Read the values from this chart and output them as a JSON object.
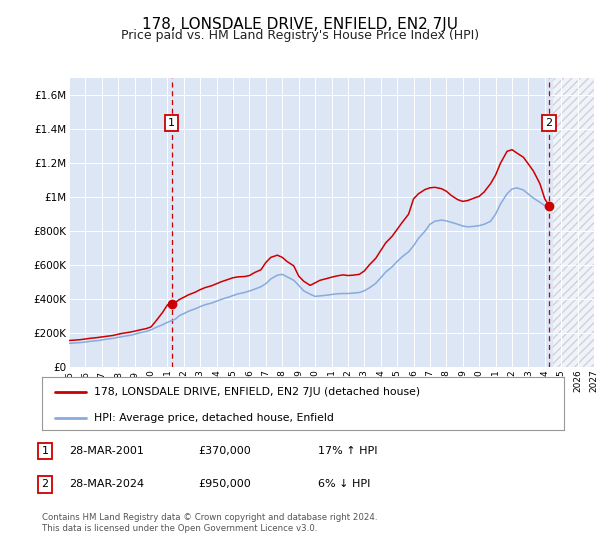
{
  "title": "178, LONSDALE DRIVE, ENFIELD, EN2 7JU",
  "subtitle": "Price paid vs. HM Land Registry's House Price Index (HPI)",
  "title_fontsize": 11,
  "subtitle_fontsize": 9,
  "background_color": "#ffffff",
  "plot_bg_color": "#dce6f5",
  "grid_color": "#ffffff",
  "red_color": "#cc0000",
  "blue_color": "#88aadd",
  "vline_color": "#cc0000",
  "marker1_x": 2001.25,
  "marker1_y": 370000,
  "marker2_x": 2024.25,
  "marker2_y": 950000,
  "x_min": 1995,
  "x_max": 2027,
  "y_min": 0,
  "y_max": 1700000,
  "yticks": [
    0,
    200000,
    400000,
    600000,
    800000,
    1000000,
    1200000,
    1400000,
    1600000
  ],
  "ytick_labels": [
    "£0",
    "£200K",
    "£400K",
    "£600K",
    "£800K",
    "£1M",
    "£1.2M",
    "£1.4M",
    "£1.6M"
  ],
  "legend1_label": "178, LONSDALE DRIVE, ENFIELD, EN2 7JU (detached house)",
  "legend2_label": "HPI: Average price, detached house, Enfield",
  "table_row1": [
    "1",
    "28-MAR-2001",
    "£370,000",
    "17% ↑ HPI"
  ],
  "table_row2": [
    "2",
    "28-MAR-2024",
    "£950,000",
    "6% ↓ HPI"
  ],
  "footer_line1": "Contains HM Land Registry data © Crown copyright and database right 2024.",
  "footer_line2": "This data is licensed under the Open Government Licence v3.0.",
  "red_years": [
    1995.0,
    1995.3,
    1995.7,
    1996.0,
    1996.3,
    1996.7,
    1997.0,
    1997.3,
    1997.7,
    1998.0,
    1998.3,
    1998.7,
    1999.0,
    1999.3,
    1999.7,
    2000.0,
    2000.3,
    2000.7,
    2001.0,
    2001.25,
    2001.5,
    2001.7,
    2002.0,
    2002.3,
    2002.7,
    2003.0,
    2003.3,
    2003.7,
    2004.0,
    2004.3,
    2004.7,
    2005.0,
    2005.3,
    2005.7,
    2006.0,
    2006.3,
    2006.7,
    2007.0,
    2007.3,
    2007.7,
    2008.0,
    2008.3,
    2008.7,
    2009.0,
    2009.3,
    2009.7,
    2010.0,
    2010.3,
    2010.7,
    2011.0,
    2011.3,
    2011.7,
    2012.0,
    2012.3,
    2012.7,
    2013.0,
    2013.3,
    2013.7,
    2014.0,
    2014.3,
    2014.7,
    2015.0,
    2015.3,
    2015.7,
    2016.0,
    2016.3,
    2016.7,
    2017.0,
    2017.3,
    2017.7,
    2018.0,
    2018.3,
    2018.7,
    2019.0,
    2019.3,
    2019.7,
    2020.0,
    2020.3,
    2020.7,
    2021.0,
    2021.3,
    2021.7,
    2022.0,
    2022.3,
    2022.7,
    2023.0,
    2023.3,
    2023.7,
    2024.0,
    2024.25
  ],
  "red_values": [
    155000,
    157000,
    160000,
    164000,
    168000,
    172000,
    176000,
    180000,
    185000,
    192000,
    198000,
    204000,
    210000,
    217000,
    225000,
    235000,
    270000,
    320000,
    365000,
    370000,
    380000,
    395000,
    410000,
    425000,
    440000,
    455000,
    467000,
    478000,
    490000,
    502000,
    515000,
    525000,
    530000,
    532000,
    538000,
    555000,
    572000,
    615000,
    645000,
    658000,
    645000,
    620000,
    595000,
    535000,
    505000,
    480000,
    495000,
    510000,
    520000,
    528000,
    535000,
    542000,
    538000,
    540000,
    545000,
    565000,
    600000,
    640000,
    685000,
    730000,
    770000,
    810000,
    850000,
    900000,
    990000,
    1020000,
    1045000,
    1055000,
    1058000,
    1050000,
    1035000,
    1010000,
    985000,
    975000,
    980000,
    995000,
    1005000,
    1030000,
    1080000,
    1130000,
    1200000,
    1270000,
    1280000,
    1260000,
    1235000,
    1195000,
    1155000,
    1080000,
    990000,
    950000
  ],
  "blue_years": [
    1995.0,
    1995.3,
    1995.7,
    1996.0,
    1996.3,
    1996.7,
    1997.0,
    1997.3,
    1997.7,
    1998.0,
    1998.3,
    1998.7,
    1999.0,
    1999.3,
    1999.7,
    2000.0,
    2000.3,
    2000.7,
    2001.0,
    2001.5,
    2001.7,
    2002.0,
    2002.3,
    2002.7,
    2003.0,
    2003.3,
    2003.7,
    2004.0,
    2004.3,
    2004.7,
    2005.0,
    2005.3,
    2005.7,
    2006.0,
    2006.3,
    2006.7,
    2007.0,
    2007.3,
    2007.7,
    2008.0,
    2008.3,
    2008.7,
    2009.0,
    2009.3,
    2009.7,
    2010.0,
    2010.3,
    2010.7,
    2011.0,
    2011.3,
    2011.7,
    2012.0,
    2012.3,
    2012.7,
    2013.0,
    2013.3,
    2013.7,
    2014.0,
    2014.3,
    2014.7,
    2015.0,
    2015.3,
    2015.7,
    2016.0,
    2016.3,
    2016.7,
    2017.0,
    2017.3,
    2017.7,
    2018.0,
    2018.3,
    2018.7,
    2019.0,
    2019.3,
    2019.7,
    2020.0,
    2020.3,
    2020.7,
    2021.0,
    2021.3,
    2021.7,
    2022.0,
    2022.3,
    2022.7,
    2023.0,
    2023.3,
    2023.7,
    2024.0,
    2024.5
  ],
  "blue_values": [
    138000,
    140000,
    143000,
    146000,
    150000,
    154000,
    158000,
    163000,
    168000,
    174000,
    179000,
    185000,
    192000,
    200000,
    208000,
    218000,
    232000,
    248000,
    262000,
    282000,
    300000,
    314000,
    328000,
    342000,
    355000,
    366000,
    376000,
    387000,
    398000,
    410000,
    420000,
    430000,
    438000,
    447000,
    457000,
    472000,
    490000,
    518000,
    540000,
    545000,
    530000,
    510000,
    480000,
    448000,
    428000,
    415000,
    418000,
    422000,
    426000,
    430000,
    432000,
    432000,
    434000,
    438000,
    448000,
    465000,
    492000,
    525000,
    558000,
    590000,
    620000,
    648000,
    678000,
    713000,
    757000,
    800000,
    840000,
    858000,
    865000,
    860000,
    852000,
    840000,
    830000,
    825000,
    828000,
    832000,
    840000,
    858000,
    900000,
    960000,
    1020000,
    1048000,
    1055000,
    1042000,
    1018000,
    995000,
    970000,
    950000,
    945000
  ]
}
